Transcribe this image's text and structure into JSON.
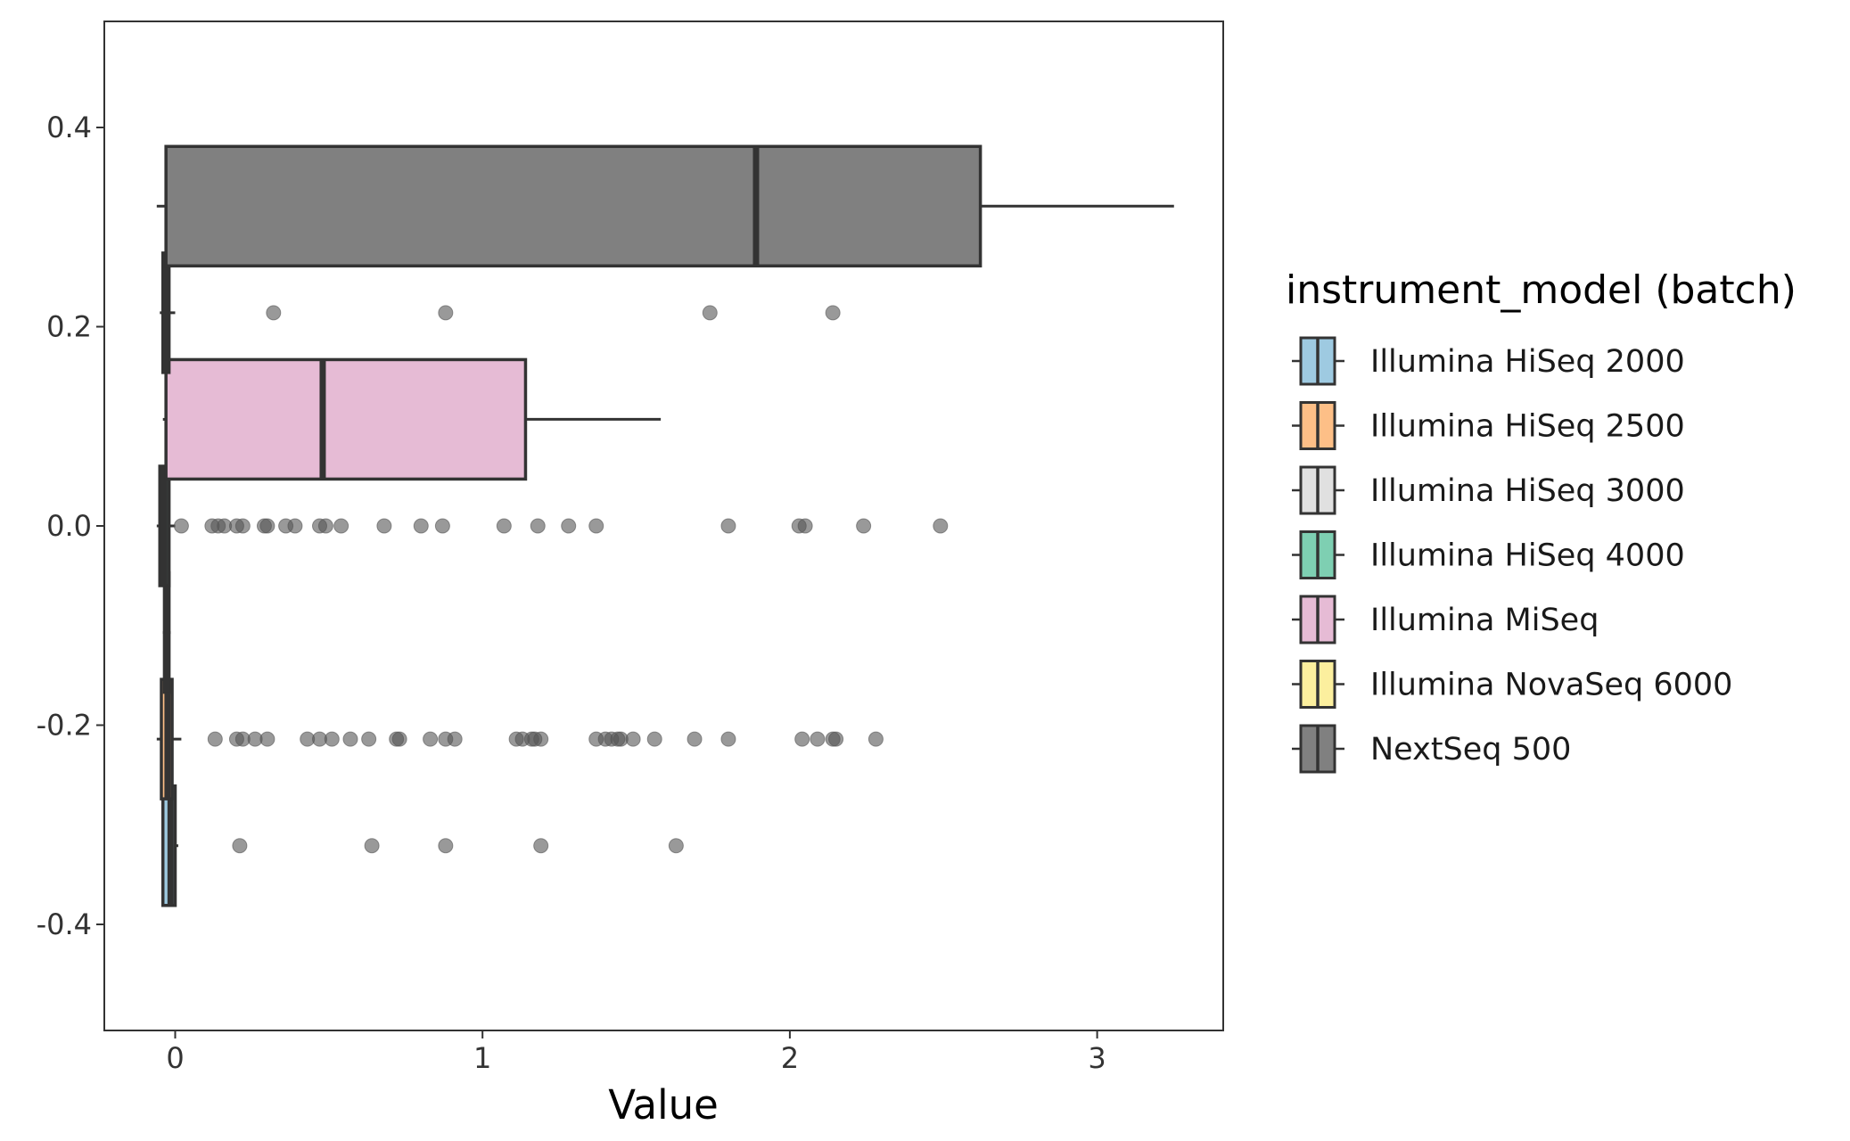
{
  "chart_data": {
    "type": "box",
    "orientation": "horizontal",
    "xlabel": "Value",
    "ylabel": "",
    "xlim": [
      -0.23,
      3.42
    ],
    "ylim": [
      -0.405,
      0.405
    ],
    "x_ticks": [
      0,
      1,
      2,
      3
    ],
    "x_tick_labels": [
      "0",
      "1",
      "2",
      "3"
    ],
    "y_ticks": [
      0.4,
      0.2,
      0.0,
      -0.2,
      -0.4
    ],
    "y_tick_labels": [
      "0.4",
      "0.2",
      "0.0",
      "-0.2",
      "-0.4"
    ],
    "grid": false,
    "legend": {
      "title": "instrument_model (batch)",
      "placement": "right",
      "entries": [
        {
          "label": "Illumina HiSeq 2000",
          "color": "#9ecae1"
        },
        {
          "label": "Illumina HiSeq 2500",
          "color": "#fdbf87"
        },
        {
          "label": "Illumina HiSeq 3000",
          "color": "#e0e0e0"
        },
        {
          "label": "Illumina HiSeq 4000",
          "color": "#7ecfb2"
        },
        {
          "label": "Illumina MiSeq",
          "color": "#e6bbd5"
        },
        {
          "label": "Illumina NovaSeq 6000",
          "color": "#fcef9e"
        },
        {
          "label": "NextSeq 500",
          "color": "#808080"
        }
      ]
    },
    "series": [
      {
        "name": "Illumina HiSeq 2000",
        "color": "#9ecae1",
        "y_center": -0.321,
        "q1": -0.04,
        "median": -0.015,
        "q3": 0.0,
        "whisker_low": -0.045,
        "whisker_high": 0.01,
        "outliers": [
          0.21,
          0.64,
          0.88,
          1.19,
          1.63
        ]
      },
      {
        "name": "Illumina HiSeq 2500",
        "color": "#fdbf87",
        "y_center": -0.214,
        "q1": -0.045,
        "median": -0.025,
        "q3": -0.01,
        "whisker_low": -0.06,
        "whisker_high": 0.02,
        "outliers": [
          0.13,
          0.2,
          0.22,
          0.26,
          0.3,
          0.43,
          0.47,
          0.51,
          0.57,
          0.63,
          0.72,
          0.73,
          0.83,
          0.88,
          0.91,
          1.11,
          1.13,
          1.16,
          1.17,
          1.19,
          1.37,
          1.4,
          1.42,
          1.44,
          1.45,
          1.49,
          1.56,
          1.69,
          1.8,
          2.04,
          2.09,
          2.14,
          2.15,
          2.28
        ]
      },
      {
        "name": "Illumina HiSeq 3000",
        "color": "#e0e0e0",
        "y_center": -0.107,
        "q1": -0.035,
        "median": -0.028,
        "q3": -0.02,
        "whisker_low": -0.04,
        "whisker_high": -0.015,
        "outliers": []
      },
      {
        "name": "Illumina HiSeq 4000",
        "color": "#7ecfb2",
        "y_center": 0.0,
        "q1": -0.05,
        "median": -0.035,
        "q3": -0.02,
        "whisker_low": -0.06,
        "whisker_high": 0.0,
        "outliers": [
          0.02,
          0.12,
          0.14,
          0.16,
          0.2,
          0.22,
          0.29,
          0.3,
          0.36,
          0.39,
          0.47,
          0.49,
          0.54,
          0.68,
          0.8,
          0.87,
          1.07,
          1.18,
          1.28,
          1.37,
          1.8,
          2.03,
          2.05,
          2.24,
          2.49
        ]
      },
      {
        "name": "Illumina MiSeq",
        "color": "#e6bbd5",
        "y_center": 0.107,
        "q1": -0.03,
        "median": 0.48,
        "q3": 1.14,
        "whisker_low": -0.04,
        "whisker_high": 1.58,
        "outliers": []
      },
      {
        "name": "Illumina NovaSeq 6000",
        "color": "#fcef9e",
        "y_center": 0.214,
        "q1": -0.04,
        "median": -0.03,
        "q3": -0.02,
        "whisker_low": -0.05,
        "whisker_high": 0.0,
        "outliers": [
          0.32,
          0.88,
          1.74,
          2.14
        ]
      },
      {
        "name": "NextSeq 500",
        "color": "#808080",
        "y_center": 0.321,
        "q1": -0.03,
        "median": 1.89,
        "q3": 2.62,
        "whisker_low": -0.06,
        "whisker_high": 3.25,
        "outliers": []
      }
    ]
  }
}
